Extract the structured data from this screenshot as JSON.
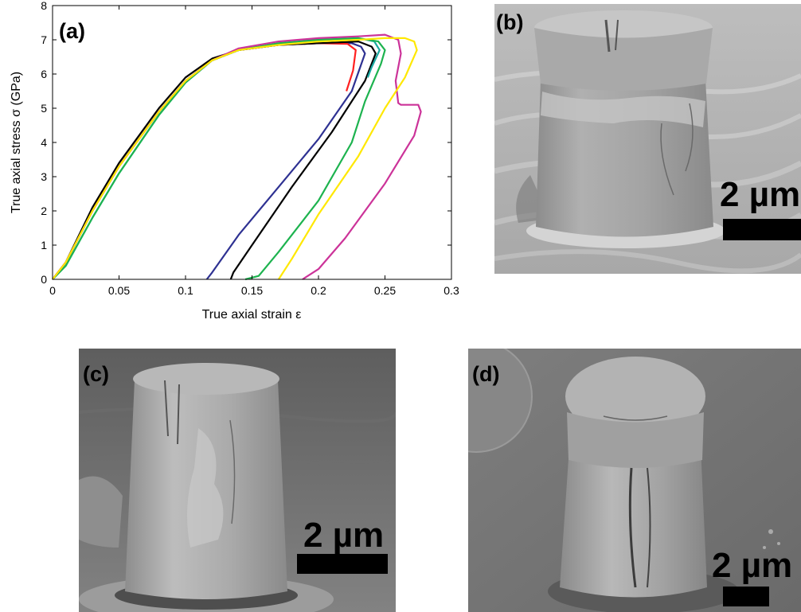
{
  "panels": {
    "a": {
      "label": "(a)"
    },
    "b": {
      "label": "(b)",
      "scale_bar": "2 µm"
    },
    "c": {
      "label": "(c)",
      "scale_bar": "2 µm"
    },
    "d": {
      "label": "(d)",
      "scale_bar": "2 µm"
    }
  },
  "chart_data": {
    "type": "line",
    "xlabel": "True axial strain ε",
    "ylabel": "True axial stress σ (GPa)",
    "xlim": [
      0,
      0.3
    ],
    "ylim": [
      0,
      8
    ],
    "x_ticks": [
      "0",
      "0.05",
      "0.1",
      "0.15",
      "0.2",
      "0.25",
      "0.3"
    ],
    "y_ticks": [
      "0",
      "1",
      "2",
      "3",
      "4",
      "5",
      "6",
      "7",
      "8"
    ],
    "grid": false,
    "legend": "none",
    "series": [
      {
        "color": "#2e3192",
        "x": [
          0,
          0.01,
          0.03,
          0.05,
          0.08,
          0.1,
          0.12,
          0.14,
          0.17,
          0.2,
          0.225,
          0.232,
          0.235,
          0.225,
          0.2,
          0.17,
          0.14,
          0.12,
          0.116
        ],
        "y": [
          0,
          0.5,
          2.0,
          3.3,
          4.9,
          5.8,
          6.4,
          6.7,
          6.85,
          6.9,
          6.9,
          6.8,
          6.6,
          5.5,
          4.1,
          2.7,
          1.3,
          0.2,
          0
        ]
      },
      {
        "color": "#ff2020",
        "x": [
          0,
          0.01,
          0.03,
          0.05,
          0.08,
          0.1,
          0.12,
          0.14,
          0.17,
          0.2,
          0.222,
          0.228,
          0.226,
          0.221
        ],
        "y": [
          0,
          0.5,
          2.0,
          3.3,
          4.9,
          5.8,
          6.4,
          6.7,
          6.85,
          6.9,
          6.88,
          6.7,
          6.1,
          5.5
        ]
      },
      {
        "color": "#000000",
        "x": [
          0,
          0.01,
          0.03,
          0.05,
          0.08,
          0.1,
          0.12,
          0.14,
          0.17,
          0.2,
          0.23,
          0.24,
          0.243,
          0.235,
          0.21,
          0.18,
          0.15,
          0.136,
          0.134
        ],
        "y": [
          0,
          0.5,
          2.1,
          3.4,
          5.0,
          5.9,
          6.45,
          6.7,
          6.85,
          6.9,
          6.95,
          6.8,
          6.6,
          5.8,
          4.3,
          2.7,
          1.0,
          0.2,
          0
        ]
      },
      {
        "color": "#1aa8a0",
        "x": [
          0,
          0.01,
          0.03,
          0.05,
          0.08,
          0.1,
          0.12,
          0.14,
          0.17,
          0.2,
          0.23,
          0.242,
          0.246,
          0.24,
          0.237
        ],
        "y": [
          0,
          0.4,
          1.8,
          3.1,
          4.8,
          5.75,
          6.4,
          6.7,
          6.9,
          7.0,
          7.05,
          6.95,
          6.7,
          6.2,
          5.9
        ]
      },
      {
        "color": "#1db34f",
        "x": [
          0,
          0.01,
          0.03,
          0.05,
          0.08,
          0.1,
          0.12,
          0.14,
          0.17,
          0.2,
          0.23,
          0.245,
          0.25,
          0.247,
          0.235,
          0.225,
          0.2,
          0.17,
          0.155,
          0.145
        ],
        "y": [
          0,
          0.4,
          1.8,
          3.1,
          4.8,
          5.75,
          6.4,
          6.7,
          6.9,
          7.0,
          7.05,
          6.95,
          6.7,
          6.3,
          5.2,
          4.0,
          2.3,
          0.8,
          0.1,
          0
        ]
      },
      {
        "color": "#cc3399",
        "x": [
          0,
          0.01,
          0.03,
          0.05,
          0.08,
          0.1,
          0.12,
          0.14,
          0.17,
          0.2,
          0.23,
          0.25,
          0.26,
          0.262,
          0.258,
          0.26,
          0.262,
          0.275,
          0.277,
          0.272,
          0.25,
          0.22,
          0.2,
          0.188
        ],
        "y": [
          0,
          0.5,
          2.0,
          3.3,
          4.9,
          5.8,
          6.4,
          6.75,
          6.95,
          7.05,
          7.1,
          7.15,
          7.0,
          6.6,
          5.8,
          5.15,
          5.1,
          5.1,
          4.9,
          4.2,
          2.8,
          1.2,
          0.3,
          0
        ]
      },
      {
        "color": "#ffe800",
        "x": [
          0,
          0.01,
          0.03,
          0.05,
          0.08,
          0.1,
          0.12,
          0.14,
          0.17,
          0.2,
          0.23,
          0.25,
          0.265,
          0.272,
          0.274,
          0.265,
          0.25,
          0.23,
          0.2,
          0.18,
          0.17
        ],
        "y": [
          0,
          0.5,
          2.0,
          3.3,
          4.9,
          5.8,
          6.4,
          6.7,
          6.85,
          6.95,
          7.0,
          7.05,
          7.05,
          6.95,
          6.7,
          5.9,
          5.0,
          3.6,
          1.9,
          0.6,
          0
        ]
      }
    ]
  }
}
